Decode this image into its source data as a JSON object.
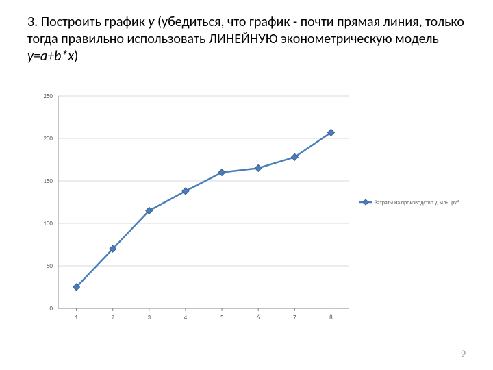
{
  "title": {
    "prefix": "3. Построить график ",
    "yvar": "y",
    "middle": " (убедиться, что график  - почти прямая линия, только тогда правильно использовать ЛИНЕЙНУЮ эконометрическую модель ",
    "formula": "y=a+b*x",
    "suffix": ")"
  },
  "page_number": "9",
  "chart": {
    "type": "line",
    "categories": [
      "1",
      "2",
      "3",
      "4",
      "5",
      "6",
      "7",
      "8"
    ],
    "values": [
      25,
      70,
      115,
      138,
      160,
      165,
      178,
      207
    ],
    "line_color": "#4a7ebb",
    "line_width": 2.5,
    "marker_shape": "diamond",
    "marker_size": 5,
    "marker_fill": "#4a7ebb",
    "marker_stroke": "#39608f",
    "ylim": [
      0,
      250
    ],
    "ytick_step": 50,
    "yticks": [
      "0",
      "50",
      "100",
      "150",
      "200",
      "250"
    ],
    "grid_color": "#d9d9d9",
    "axis_color": "#878787",
    "tick_label_fontsize": 9,
    "tick_label_color": "#595959",
    "legend_label": "Затраты на производство y, млн. руб.",
    "legend_fontsize": 8,
    "legend_color": "#595959",
    "legend_marker_color": "#4a7ebb",
    "plot_background": "#ffffff"
  }
}
